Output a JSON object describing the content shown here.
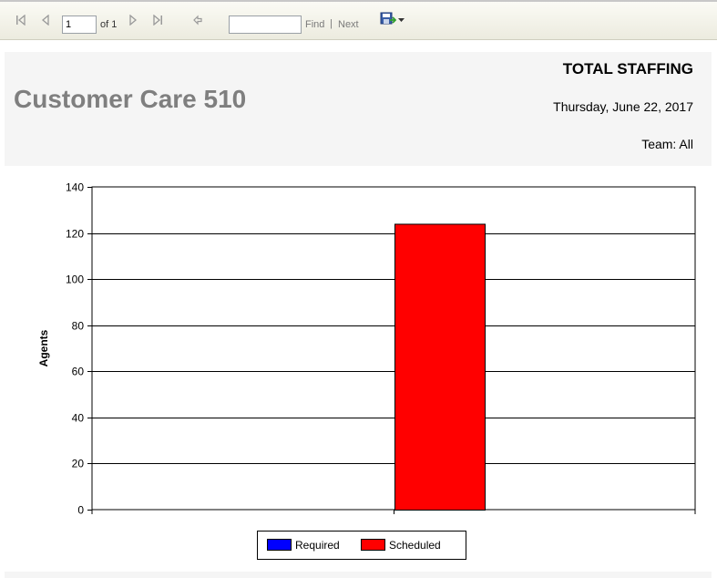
{
  "toolbar": {
    "page_value": "1",
    "of_label": "of 1",
    "find_placeholder": "",
    "find_label": "Find",
    "separator": "|",
    "next_label": "Next",
    "icons": [
      "first-page-icon",
      "previous-page-icon",
      "next-page-icon",
      "last-page-icon",
      "back-icon",
      "export-save-icon",
      "dropdown-arrow-icon"
    ]
  },
  "header": {
    "org_title": "Customer Care 510",
    "report_title": "TOTAL STAFFING",
    "date": "Thursday, June 22, 2017",
    "team": "Team: All"
  },
  "chart_data": {
    "type": "bar",
    "categories": [
      ""
    ],
    "series": [
      {
        "name": "Required",
        "values": [
          0
        ],
        "color": "#0000ff"
      },
      {
        "name": "Scheduled",
        "values": [
          124
        ],
        "color": "#ff0000"
      }
    ],
    "ylabel": "Agents",
    "xlabel": "",
    "ylim": [
      0,
      140
    ],
    "yticks": [
      "0",
      "20",
      "40",
      "60",
      "80",
      "100",
      "120",
      "140"
    ],
    "grid": true,
    "legend": "bottom"
  }
}
